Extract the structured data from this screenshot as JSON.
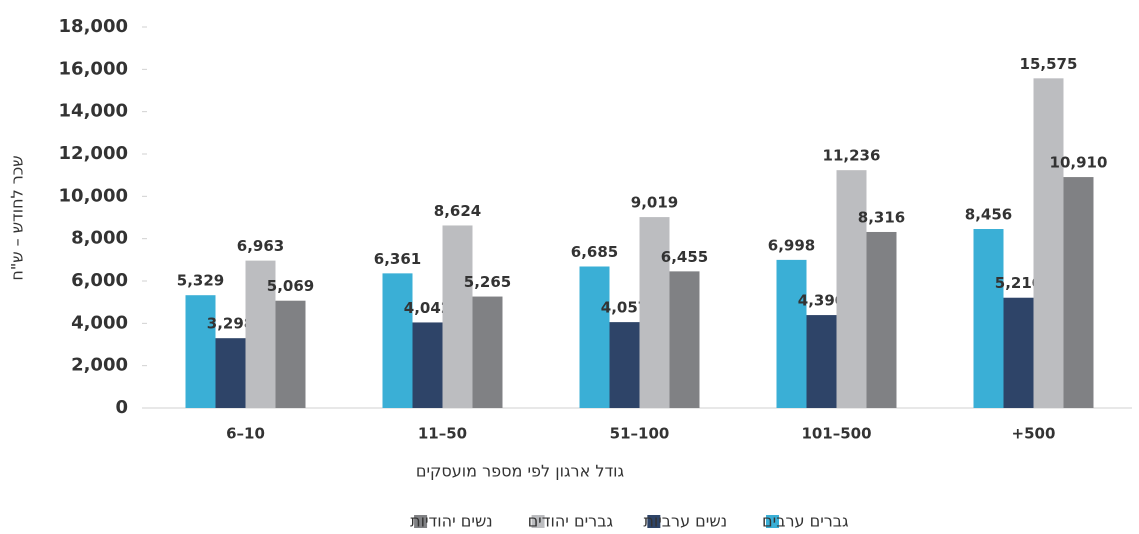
{
  "chart_data": {
    "type": "bar",
    "y_label": "שכר לחודש – ש\"ח",
    "x_label": "גודל ארגון לפי מספר מועסקים",
    "categories": [
      "6–10",
      "11–50",
      "51–100",
      "101–500",
      "+500"
    ],
    "series": [
      {
        "name": "גברים ערבים",
        "color": "#3aafd6",
        "values": [
          5329,
          6361,
          6685,
          6998,
          8456
        ],
        "value_labels": [
          "5,329",
          "6,361",
          "6,685",
          "6,998",
          "8,456"
        ]
      },
      {
        "name": "נשים ערביות",
        "color": "#2e4468",
        "values": [
          3298,
          4042,
          4057,
          4390,
          5210
        ],
        "value_labels": [
          "3,298",
          "4,042",
          "4,057",
          "4,390",
          "5,210"
        ]
      },
      {
        "name": "גברים יהודים",
        "color": "#bcbdc0",
        "values": [
          6963,
          8624,
          9019,
          11236,
          15575
        ],
        "value_labels": [
          "6,963",
          "8,624",
          "9,019",
          "11,236",
          "15,575"
        ]
      },
      {
        "name": "נשים יהודיות",
        "color": "#808184",
        "values": [
          5069,
          5265,
          6455,
          8316,
          10910
        ],
        "value_labels": [
          "5,069",
          "5,265",
          "6,455",
          "8,316",
          "10,910"
        ]
      }
    ],
    "ylim": [
      0,
      18000
    ],
    "yticks": [
      0,
      {
        "value": 2000,
        "label": "2,000"
      },
      {
        "value": 4000,
        "label": "4,000"
      },
      {
        "value": 6000,
        "label": "6,000"
      },
      {
        "value": 8000,
        "label": "8,000"
      },
      {
        "value": 10000,
        "label": "10,000"
      },
      {
        "value": 12000,
        "label": "12,000"
      },
      {
        "value": 14000,
        "label": "14,000"
      },
      {
        "value": 16000,
        "label": "16,000"
      },
      {
        "value": 18000,
        "label": "18,000"
      }
    ],
    "grid": false
  }
}
